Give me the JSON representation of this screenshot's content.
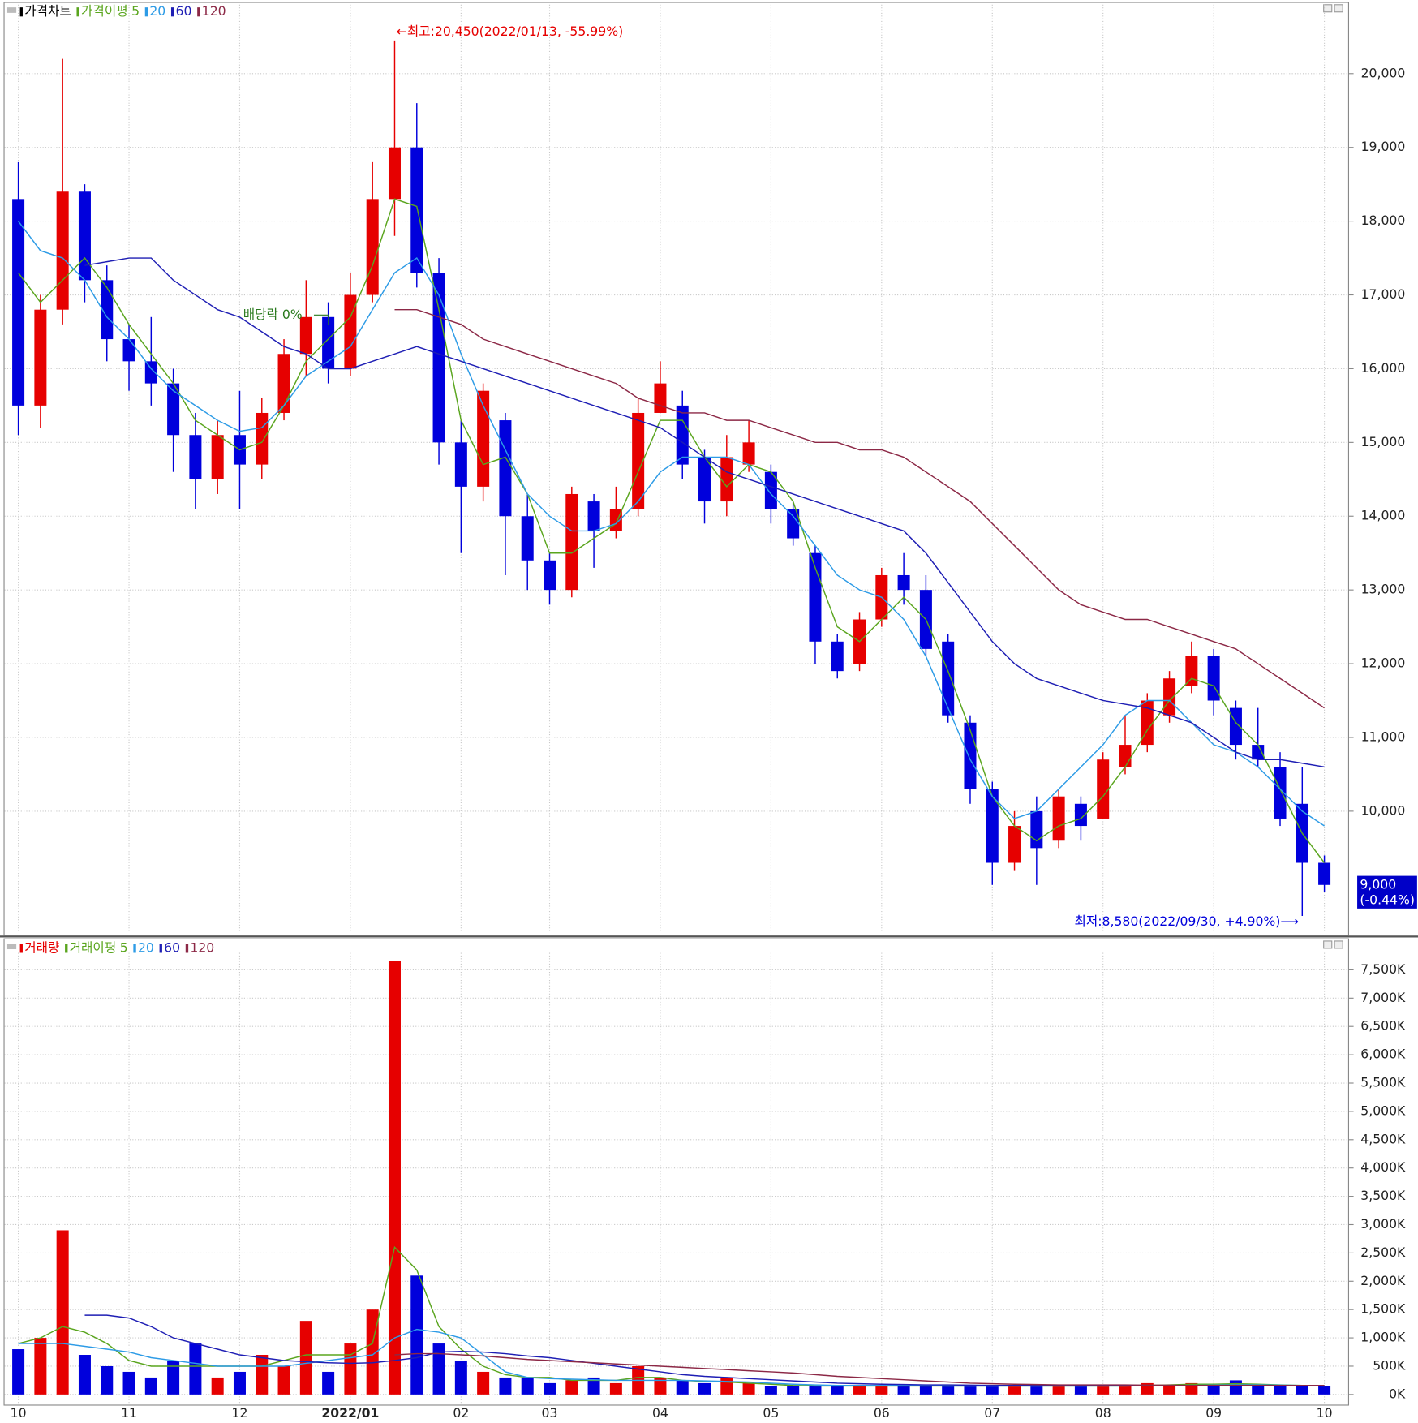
{
  "chart_data": [
    {
      "type": "candlestick",
      "title": "가격차트",
      "ma_title": "가격이평",
      "up_color": "#e60000",
      "down_color": "#0000dc",
      "open": [
        18300,
        15500,
        16800,
        18400,
        17200,
        16400,
        16100,
        15800,
        15100,
        14500,
        15100,
        14700,
        15400,
        16200,
        16700,
        16000,
        17000,
        18300,
        19000,
        17300,
        15000,
        14400,
        15300,
        14000,
        13400,
        13000,
        14200,
        13800,
        14100,
        15400,
        15500,
        14800,
        14200,
        14700,
        14600,
        14100,
        13500,
        12300,
        12000,
        12600,
        13200,
        13000,
        12300,
        11200,
        10300,
        9300,
        10000,
        9600,
        10100,
        9900,
        10600,
        10900,
        11300,
        11700,
        12100,
        11400,
        10900,
        10600,
        10100,
        9300
      ],
      "high": [
        18800,
        17000,
        20200,
        18500,
        17400,
        16600,
        16700,
        16000,
        15400,
        15300,
        15700,
        15600,
        16400,
        17200,
        16900,
        17300,
        18800,
        20450,
        19600,
        17500,
        15300,
        15800,
        15400,
        14300,
        13500,
        14400,
        14300,
        14400,
        15600,
        16100,
        15700,
        14900,
        15100,
        15300,
        14700,
        14200,
        13600,
        12400,
        12700,
        13300,
        13500,
        13200,
        12400,
        11300,
        10400,
        10000,
        10200,
        10300,
        10200,
        10800,
        11300,
        11600,
        11900,
        12300,
        12200,
        11500,
        11400,
        10800,
        10600,
        9400
      ],
      "low": [
        15100,
        15200,
        16600,
        16900,
        16100,
        15700,
        15500,
        14600,
        14100,
        14300,
        14100,
        14500,
        15300,
        15900,
        15800,
        15900,
        16900,
        17800,
        17100,
        14700,
        13500,
        14200,
        13200,
        13000,
        12800,
        12900,
        13300,
        13700,
        14000,
        15400,
        14500,
        13900,
        14000,
        14600,
        13900,
        13600,
        12000,
        11800,
        11900,
        12500,
        12800,
        12100,
        11200,
        10100,
        9000,
        9200,
        9000,
        9500,
        9600,
        9900,
        10500,
        10800,
        11200,
        11600,
        11300,
        10700,
        10600,
        9800,
        8580,
        8900
      ],
      "close": [
        15500,
        16800,
        18400,
        17200,
        16400,
        16100,
        15800,
        15100,
        14500,
        15100,
        14700,
        15400,
        16200,
        16700,
        16000,
        17000,
        18300,
        19000,
        17300,
        15000,
        14400,
        15700,
        14000,
        13400,
        13000,
        14300,
        13800,
        14100,
        15400,
        15800,
        14700,
        14200,
        14800,
        15000,
        14100,
        13700,
        12300,
        11900,
        12600,
        13200,
        13000,
        12200,
        11300,
        10300,
        9300,
        9800,
        9500,
        10200,
        9800,
        10700,
        10900,
        11500,
        11800,
        12100,
        11500,
        10900,
        10700,
        9900,
        9300,
        9000
      ],
      "series": [
        {
          "name": "5",
          "color": "#5aa51e",
          "values": [
            17300,
            16900,
            17200,
            17500,
            17100,
            16600,
            16200,
            15800,
            15300,
            15100,
            14900,
            15000,
            15500,
            16100,
            16400,
            16700,
            17400,
            18300,
            18200,
            16800,
            15300,
            14700,
            14800,
            14300,
            13500,
            13500,
            13700,
            13900,
            14600,
            15300,
            15300,
            14800,
            14400,
            14700,
            14600,
            14200,
            13300,
            12500,
            12300,
            12600,
            12900,
            12600,
            11900,
            11100,
            10200,
            9800,
            9600,
            9800,
            9900,
            10200,
            10600,
            11100,
            11500,
            11800,
            11700,
            11200,
            10900,
            10300,
            9700,
            9300
          ]
        },
        {
          "name": "20",
          "color": "#2d9be6",
          "values": [
            18000,
            17600,
            17500,
            17200,
            16700,
            16400,
            16000,
            15700,
            15500,
            15300,
            15150,
            15200,
            15500,
            15900,
            16100,
            16300,
            16800,
            17300,
            17500,
            17000,
            16200,
            15500,
            14900,
            14300,
            14000,
            13800,
            13800,
            13900,
            14200,
            14600,
            14800,
            14800,
            14800,
            14700,
            14300,
            14000,
            13600,
            13200,
            13000,
            12900,
            12600,
            12100,
            11400,
            10700,
            10200,
            9900,
            10000,
            10300,
            10600,
            10900,
            11300,
            11500,
            11500,
            11200,
            10900,
            10800,
            10600,
            10300,
            10000,
            9800
          ]
        },
        {
          "name": "60",
          "color": "#1e1eb4",
          "values": [
            null,
            null,
            null,
            17400,
            17450,
            17500,
            17500,
            17200,
            17000,
            16800,
            16700,
            16500,
            16300,
            16200,
            16000,
            16000,
            16100,
            16200,
            16300,
            16200,
            16100,
            16000,
            15900,
            15800,
            15700,
            15600,
            15500,
            15400,
            15300,
            15200,
            15000,
            14800,
            14600,
            14500,
            14400,
            14300,
            14200,
            14100,
            14000,
            13900,
            13800,
            13500,
            13100,
            12700,
            12300,
            12000,
            11800,
            11700,
            11600,
            11500,
            11450,
            11400,
            11300,
            11200,
            11000,
            10800,
            10700,
            10700,
            10650,
            10600
          ]
        },
        {
          "name": "120",
          "color": "#8c2846",
          "values": [
            null,
            null,
            null,
            null,
            null,
            null,
            null,
            null,
            null,
            null,
            null,
            null,
            null,
            null,
            null,
            null,
            null,
            16800,
            16800,
            16700,
            16600,
            16400,
            16300,
            16200,
            16100,
            16000,
            15900,
            15800,
            15600,
            15500,
            15400,
            15400,
            15300,
            15300,
            15200,
            15100,
            15000,
            15000,
            14900,
            14900,
            14800,
            14600,
            14400,
            14200,
            13900,
            13600,
            13300,
            13000,
            12800,
            12700,
            12600,
            12600,
            12500,
            12400,
            12300,
            12200,
            12000,
            11800,
            11600,
            11400
          ]
        }
      ],
      "ylim": [
        8350,
        20935
      ],
      "yticks": [
        {
          "value": 10000,
          "label": "10,000"
        },
        {
          "value": 11000,
          "label": "11,000"
        },
        {
          "value": 12000,
          "label": "12,000"
        },
        {
          "value": 13000,
          "label": "13,000"
        },
        {
          "value": 14000,
          "label": "14,000"
        },
        {
          "value": 15000,
          "label": "15,000"
        },
        {
          "value": 16000,
          "label": "16,000"
        },
        {
          "value": 17000,
          "label": "17,000"
        },
        {
          "value": 18000,
          "label": "18,000"
        },
        {
          "value": 19000,
          "label": "19,000"
        },
        {
          "value": 20000,
          "label": "20,000"
        }
      ],
      "grid": true,
      "annotations": [
        "←최고:20,450(2022/01/13, -55.99%)",
        "최저:8,580(2022/09/30, +4.90%)⟶",
        "배당락 0%"
      ],
      "last_price": 9000,
      "last_price_label": "9,000",
      "last_change": "(-0.44%)"
    },
    {
      "type": "bar",
      "title": "거래량",
      "ma_title": "거래이평",
      "categories": [
        "10",
        null,
        null,
        null,
        null,
        "11",
        null,
        null,
        null,
        null,
        "12",
        null,
        null,
        null,
        null,
        "2022/01",
        null,
        null,
        null,
        null,
        "02",
        null,
        null,
        null,
        "03",
        null,
        null,
        null,
        null,
        "04",
        null,
        null,
        null,
        null,
        "05",
        null,
        null,
        null,
        null,
        "06",
        null,
        null,
        null,
        null,
        "07",
        null,
        null,
        null,
        null,
        "08",
        null,
        null,
        null,
        null,
        "09",
        null,
        null,
        null,
        null,
        "10"
      ],
      "values": [
        800,
        1000,
        2900,
        700,
        500,
        400,
        300,
        600,
        900,
        300,
        400,
        700,
        500,
        1300,
        400,
        900,
        1500,
        7650,
        2100,
        900,
        600,
        400,
        300,
        300,
        200,
        250,
        300,
        200,
        500,
        300,
        250,
        200,
        300,
        200,
        150,
        150,
        150,
        150,
        150,
        150,
        150,
        150,
        150,
        150,
        150,
        150,
        150,
        150,
        150,
        150,
        150,
        200,
        150,
        200,
        150,
        250,
        150,
        150,
        150,
        150
      ],
      "series": [
        {
          "name": "5",
          "color": "#5aa51e",
          "values": [
            900,
            1000,
            1200,
            1100,
            900,
            600,
            500,
            500,
            500,
            500,
            500,
            500,
            600,
            700,
            700,
            700,
            900,
            2600,
            2200,
            1200,
            800,
            500,
            350,
            300,
            300,
            250,
            250,
            250,
            300,
            300,
            250,
            230,
            220,
            200,
            180,
            160,
            150,
            150,
            150,
            150,
            150,
            150,
            150,
            150,
            150,
            150,
            150,
            150,
            150,
            150,
            150,
            160,
            170,
            180,
            180,
            190,
            180,
            170,
            160,
            150
          ]
        },
        {
          "name": "20",
          "color": "#2d9be6",
          "values": [
            900,
            900,
            900,
            850,
            800,
            750,
            650,
            600,
            550,
            500,
            500,
            500,
            500,
            550,
            600,
            650,
            700,
            1000,
            1150,
            1100,
            1000,
            700,
            400,
            300,
            280,
            270,
            260,
            250,
            250,
            250,
            250,
            240,
            230,
            220,
            200,
            180,
            170,
            160,
            160,
            160,
            160,
            155,
            150,
            150,
            150,
            150,
            150,
            150,
            150,
            150,
            150,
            155,
            160,
            160,
            165,
            170,
            170,
            165,
            160,
            160
          ]
        },
        {
          "name": "60",
          "color": "#1e1eb4",
          "values": [
            null,
            null,
            null,
            1400,
            1400,
            1350,
            1200,
            1000,
            900,
            800,
            700,
            650,
            600,
            580,
            560,
            550,
            560,
            600,
            650,
            750,
            760,
            750,
            720,
            680,
            650,
            600,
            550,
            500,
            450,
            400,
            350,
            320,
            300,
            280,
            260,
            240,
            220,
            200,
            190,
            180,
            175,
            170,
            170,
            165,
            160,
            160,
            160,
            160,
            160,
            160,
            160,
            160,
            160,
            160,
            160,
            160,
            160,
            160,
            160,
            160
          ]
        },
        {
          "name": "120",
          "color": "#8c2846",
          "values": [
            null,
            null,
            null,
            null,
            null,
            null,
            null,
            null,
            null,
            null,
            null,
            null,
            null,
            null,
            null,
            null,
            null,
            700,
            720,
            720,
            700,
            680,
            650,
            620,
            600,
            580,
            560,
            540,
            520,
            500,
            480,
            460,
            440,
            420,
            400,
            380,
            350,
            320,
            300,
            280,
            260,
            240,
            220,
            200,
            190,
            180,
            175,
            170,
            170,
            170,
            170,
            165,
            165,
            160,
            160,
            160,
            160,
            160,
            160,
            160
          ]
        }
      ],
      "ylim": [
        -180,
        7800
      ],
      "yticks": [
        {
          "value": 0,
          "label": "0K"
        },
        {
          "value": 500,
          "label": "500K"
        },
        {
          "value": 1000,
          "label": "1,000K"
        },
        {
          "value": 1500,
          "label": "1,500K"
        },
        {
          "value": 2000,
          "label": "2,000K"
        },
        {
          "value": 2500,
          "label": "2,500K"
        },
        {
          "value": 3000,
          "label": "3,000K"
        },
        {
          "value": 3500,
          "label": "3,500K"
        },
        {
          "value": 4000,
          "label": "4,000K"
        },
        {
          "value": 4500,
          "label": "4,500K"
        },
        {
          "value": 5000,
          "label": "5,000K"
        },
        {
          "value": 5500,
          "label": "5,500K"
        },
        {
          "value": 6000,
          "label": "6,000K"
        },
        {
          "value": 6500,
          "label": "6,500K"
        },
        {
          "value": 7000,
          "label": "7,000K"
        },
        {
          "value": 7500,
          "label": "7,500K"
        }
      ],
      "grid": true
    }
  ]
}
